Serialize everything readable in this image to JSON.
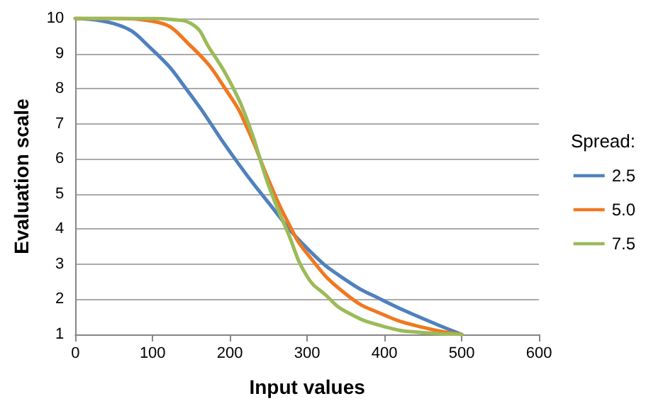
{
  "chart_data": {
    "type": "line",
    "xlabel": "Input values",
    "ylabel": "Evaluation scale",
    "legend_title": "Spread:",
    "legend": "right",
    "grid": "y",
    "marker": "none",
    "line_style": "solid",
    "xlim": [
      0,
      600
    ],
    "xticks": [
      0,
      100,
      200,
      300,
      400,
      500,
      600
    ],
    "ylim": [
      1,
      10
    ],
    "yticks": [
      1,
      2,
      3,
      4,
      5,
      6,
      7,
      8,
      9,
      10
    ],
    "series": [
      {
        "name": "2.5",
        "color": "#4f81bd",
        "x": [
          0,
          50,
          100,
          150,
          200,
          250,
          300,
          350,
          400,
          450,
          500
        ],
        "values": [
          10,
          9.85,
          9.1,
          7.8,
          6.2,
          4.75,
          3.45,
          2.55,
          1.95,
          1.45,
          1
        ]
      },
      {
        "name": "5.0",
        "color": "#f07820",
        "x": [
          0,
          50,
          100,
          150,
          200,
          225,
          250,
          275,
          300,
          350,
          400,
          450,
          500
        ],
        "values": [
          10,
          10,
          9.92,
          9.2,
          7.8,
          6.75,
          5.4,
          4.2,
          3.3,
          2.15,
          1.55,
          1.2,
          1
        ]
      },
      {
        "name": "7.5",
        "color": "#9bbb59",
        "x": [
          0,
          100,
          125,
          150,
          175,
          200,
          225,
          250,
          275,
          300,
          325,
          350,
          400,
          450,
          500
        ],
        "values": [
          10,
          10,
          9.97,
          9.85,
          9.1,
          8.2,
          6.95,
          5.25,
          3.9,
          2.65,
          2.1,
          1.65,
          1.22,
          1.05,
          1
        ]
      }
    ]
  }
}
